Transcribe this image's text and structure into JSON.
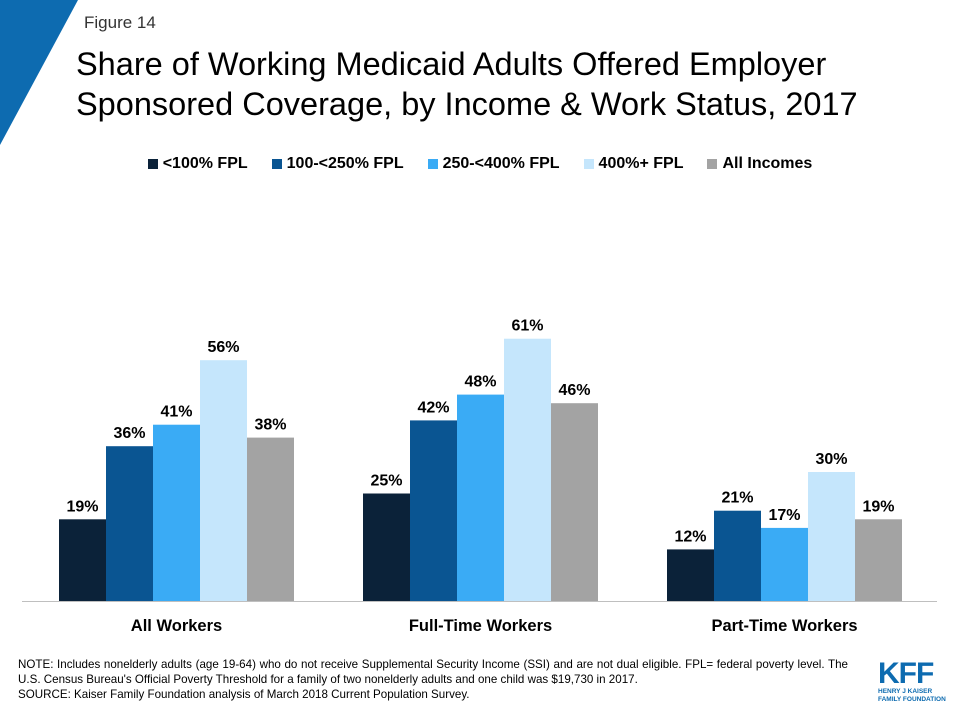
{
  "figure_label": "Figure 14",
  "title_lines": [
    "Share of Working Medicaid Adults Offered Employer",
    "Sponsored Coverage, by Income & Work Status, 2017"
  ],
  "colors": {
    "corner": "#0d6bb0",
    "series": [
      "#0b2239",
      "#0a5592",
      "#3aabf5",
      "#c5e6fc",
      "#a3a3a3"
    ]
  },
  "chart_data": {
    "type": "bar",
    "title": "Share of Working Medicaid Adults Offered Employer Sponsored Coverage, by Income & Work Status, 2017",
    "categories": [
      "All Workers",
      "Full-Time Workers",
      "Part-Time Workers"
    ],
    "series": [
      {
        "name": "<100% FPL",
        "values": [
          19,
          25,
          12
        ],
        "labels": [
          "19%",
          "25%",
          "12%"
        ]
      },
      {
        "name": "100-<250% FPL",
        "values": [
          36,
          42,
          21
        ],
        "labels": [
          "36%",
          "42%",
          "21%"
        ]
      },
      {
        "name": "250-<400% FPL",
        "values": [
          41,
          48,
          17
        ],
        "labels": [
          "41%",
          "48%",
          "17%"
        ]
      },
      {
        "name": "400%+ FPL",
        "values": [
          56,
          61,
          30
        ],
        "labels": [
          "56%",
          "61%",
          "30%"
        ]
      },
      {
        "name": "All Incomes",
        "values": [
          38,
          46,
          19
        ],
        "labels": [
          "38%",
          "46%",
          "19%"
        ]
      }
    ],
    "xlabel": "",
    "ylabel": "",
    "ylim": [
      0,
      100
    ],
    "grid": false,
    "legend": "top-center"
  },
  "note_lines": [
    "NOTE: Includes nonelderly adults (age 19-64) who do not receive Supplemental Security Income (SSI) and are not dual eligible. FPL= federal poverty level. The U.S. Census Bureau's Official Poverty Threshold for a family of two nonelderly adults and one child was $19,730 in 2017.",
    "SOURCE: Kaiser Family Foundation analysis of March 2018 Current Population Survey."
  ],
  "logo": {
    "mark": "KFF",
    "sub_lines": [
      "HENRY J KAISER",
      "FAMILY FOUNDATION"
    ]
  }
}
